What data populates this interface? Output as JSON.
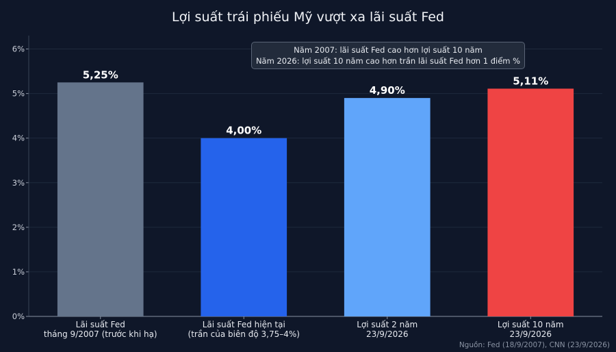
{
  "chart_data": {
    "type": "bar",
    "title": "Lợi suất trái phiếu Mỹ vượt xa lãi suất Fed",
    "categories": [
      [
        "Lãi suất Fed",
        "tháng 9/2007 (trước khi hạ)"
      ],
      [
        "Lãi suất Fed hiện tại",
        "(trần của biên độ 3,75–4%)"
      ],
      [
        "Lợi suất 2 năm",
        "23/9/2026"
      ],
      [
        "Lợi suất 10 năm",
        "23/9/2026"
      ]
    ],
    "values": [
      5.25,
      4.0,
      4.9,
      5.11
    ],
    "value_labels": [
      "5,25%",
      "4,00%",
      "4,90%",
      "5,11%"
    ],
    "colors": [
      "#64748b",
      "#2563eb",
      "#60a5fa",
      "#ef4444"
    ],
    "ylim": [
      0,
      6.3
    ],
    "yticks": [
      0,
      1,
      2,
      3,
      4,
      5,
      6
    ],
    "ytick_labels": [
      "0%",
      "1%",
      "2%",
      "3%",
      "4%",
      "5%",
      "6%"
    ],
    "xlabel": "",
    "ylabel": "",
    "grid": true,
    "annotation": [
      "Năm 2007: lãi suất Fed cao hơn lợi suất 10 năm",
      "Năm 2026: lợi suất 10 năm cao hơn trần lãi suất Fed hơn 1 điểm %"
    ],
    "source": "Nguồn: Fed (18/9/2007), CNN (23/9/2026)"
  }
}
